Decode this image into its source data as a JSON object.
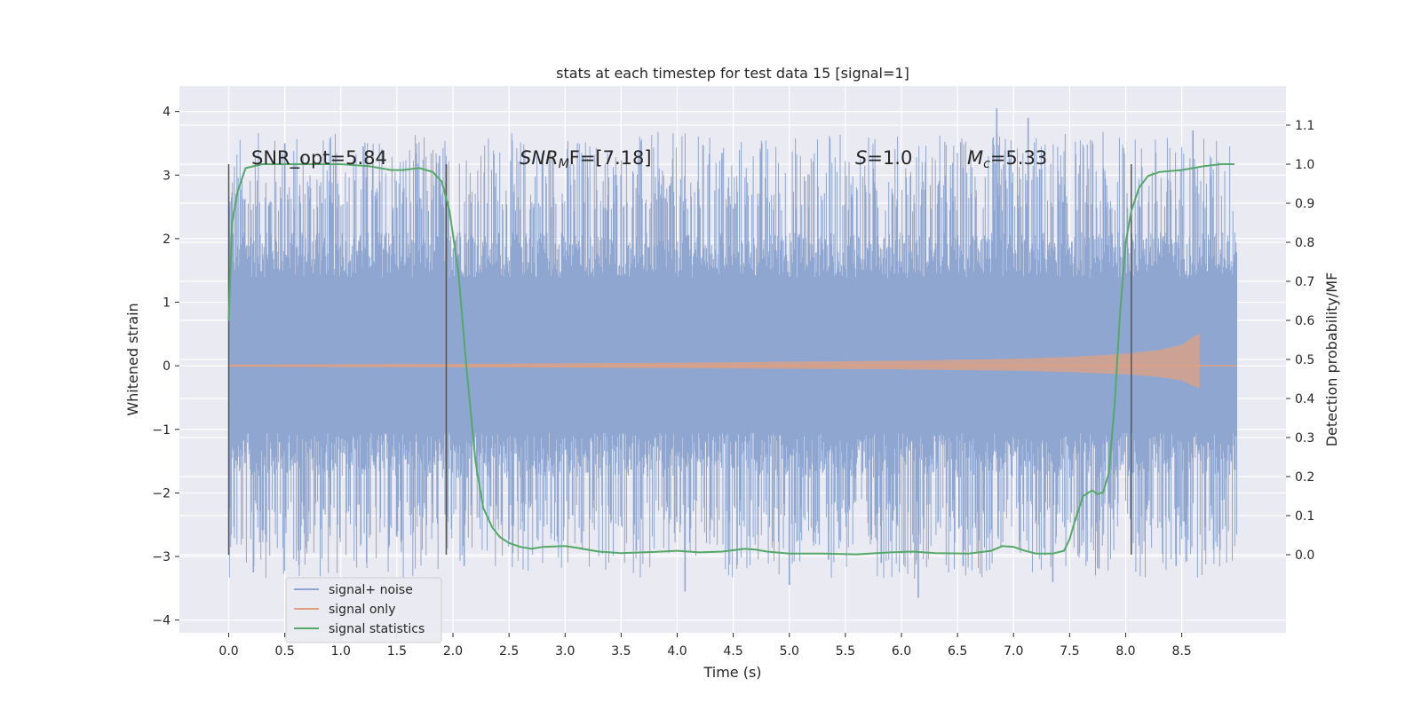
{
  "chart_data": {
    "type": "line",
    "title": "stats at each timestep for test data 15 [signal=1]",
    "xlabel": "Time (s)",
    "ylabel_left": "Whitened strain",
    "ylabel_right": "Detection probability/MF",
    "xlim": [
      -0.44,
      9.43
    ],
    "ylim_left": [
      -4.2,
      4.4
    ],
    "ylim_right": [
      -0.2,
      1.2
    ],
    "x_ticks": [
      "0.0",
      "0.5",
      "1.0",
      "1.5",
      "2.0",
      "2.5",
      "3.0",
      "3.5",
      "4.0",
      "4.5",
      "5.0",
      "5.5",
      "6.0",
      "6.5",
      "7.0",
      "7.5",
      "8.0",
      "8.5"
    ],
    "x_tick_values": [
      0,
      0.5,
      1,
      1.5,
      2,
      2.5,
      3,
      3.5,
      4,
      4.5,
      5,
      5.5,
      6,
      6.5,
      7,
      7.5,
      8,
      8.5
    ],
    "y_left_ticks": [
      "4",
      "3",
      "2",
      "1",
      "0",
      "−1",
      "−2",
      "−3",
      "−4"
    ],
    "y_left_tick_values": [
      4,
      3,
      2,
      1,
      0,
      -1,
      -2,
      -3,
      -4
    ],
    "y_right_ticks": [
      "1.1",
      "1.0",
      "0.9",
      "0.8",
      "0.7",
      "0.6",
      "0.5",
      "0.4",
      "0.3",
      "0.2",
      "0.1",
      "0.0"
    ],
    "y_right_tick_values": [
      1.1,
      1.0,
      0.9,
      0.8,
      0.7,
      0.6,
      0.5,
      0.4,
      0.3,
      0.2,
      0.1,
      0.0
    ],
    "grid": true,
    "legend_position": "bottom-left",
    "legend": [
      {
        "label": "signal+ noise",
        "color": "#8fa6d1"
      },
      {
        "label": "signal only",
        "color": "#e0a080"
      },
      {
        "label": "signal statistics",
        "color": "#55a868"
      }
    ],
    "annotations": {
      "snr_opt": "SNR_opt=5.84",
      "snr_mf_name": "SNR",
      "snr_mf_sub": "M",
      "snr_mf_tail": "F=[7.18]",
      "s_name": "S",
      "s_value": "=1.0",
      "mc_name": "M",
      "mc_sub": "c",
      "mc_value": "=5.33"
    },
    "vertical_lines_x": [
      0.0,
      1.94,
      8.05
    ],
    "series": [
      {
        "name": "signal+ noise",
        "color": "#8fa6d1",
        "x_range": [
          0.0,
          8.99
        ],
        "core_band": [
          -1.05,
          1.38
        ],
        "peak_extremes": [
          {
            "x": 0.5,
            "y": 3.5
          },
          {
            "x": 1.2,
            "y": 3.45
          },
          {
            "x": 1.88,
            "y": 3.3
          },
          {
            "x": 2.8,
            "y": 3.3
          },
          {
            "x": 4.4,
            "y": 3.35
          },
          {
            "x": 6.85,
            "y": 4.05
          },
          {
            "x": 7.13,
            "y": 3.9
          },
          {
            "x": 8.6,
            "y": 3.7
          },
          {
            "x": 0.22,
            "y": -3.25
          },
          {
            "x": 1.23,
            "y": -3.1
          },
          {
            "x": 2.1,
            "y": -3.15
          },
          {
            "x": 4.07,
            "y": -3.55
          },
          {
            "x": 5.0,
            "y": -3.45
          },
          {
            "x": 5.35,
            "y": -3.05
          },
          {
            "x": 5.82,
            "y": -3.1
          },
          {
            "x": 6.15,
            "y": -3.65
          },
          {
            "x": 6.55,
            "y": -3.15
          },
          {
            "x": 7.35,
            "y": -3.4
          },
          {
            "x": 8.45,
            "y": -3.15
          }
        ]
      },
      {
        "name": "signal only",
        "color": "#e0a080",
        "envelope": [
          {
            "x": 0.0,
            "amp": 0.02
          },
          {
            "x": 2.0,
            "amp": 0.03
          },
          {
            "x": 4.0,
            "amp": 0.05
          },
          {
            "x": 6.0,
            "amp": 0.08
          },
          {
            "x": 7.0,
            "amp": 0.11
          },
          {
            "x": 7.5,
            "amp": 0.14
          },
          {
            "x": 8.0,
            "amp": 0.19
          },
          {
            "x": 8.3,
            "amp": 0.25
          },
          {
            "x": 8.5,
            "amp": 0.33
          },
          {
            "x": 8.6,
            "amp": 0.45
          },
          {
            "x": 8.66,
            "amp": 0.5
          }
        ]
      },
      {
        "name": "signal statistics",
        "axis": "right",
        "color": "#55a868",
        "x": [
          0.0,
          0.03,
          0.08,
          0.15,
          0.3,
          0.6,
          1.0,
          1.25,
          1.45,
          1.55,
          1.7,
          1.82,
          1.9,
          1.97,
          2.05,
          2.12,
          2.2,
          2.27,
          2.35,
          2.42,
          2.5,
          2.6,
          2.7,
          2.8,
          3.0,
          3.1,
          3.3,
          3.5,
          3.8,
          4.0,
          4.2,
          4.4,
          4.6,
          4.7,
          4.8,
          5.0,
          5.3,
          5.6,
          5.9,
          6.1,
          6.3,
          6.6,
          6.8,
          6.9,
          7.0,
          7.1,
          7.2,
          7.35,
          7.45,
          7.5,
          7.55,
          7.62,
          7.7,
          7.75,
          7.8,
          7.85,
          7.9,
          7.95,
          8.0,
          8.05,
          8.12,
          8.2,
          8.3,
          8.5,
          8.7,
          8.85,
          8.97
        ],
        "values": [
          0.6,
          0.85,
          0.93,
          0.99,
          1.0,
          1.0,
          1.0,
          0.995,
          0.985,
          0.985,
          0.99,
          0.98,
          0.955,
          0.88,
          0.72,
          0.48,
          0.24,
          0.12,
          0.07,
          0.045,
          0.03,
          0.02,
          0.015,
          0.02,
          0.022,
          0.018,
          0.008,
          0.004,
          0.007,
          0.01,
          0.006,
          0.008,
          0.015,
          0.013,
          0.008,
          0.003,
          0.003,
          0.001,
          0.006,
          0.008,
          0.004,
          0.003,
          0.01,
          0.022,
          0.02,
          0.01,
          0.003,
          0.003,
          0.01,
          0.04,
          0.09,
          0.15,
          0.165,
          0.155,
          0.16,
          0.21,
          0.38,
          0.62,
          0.8,
          0.88,
          0.94,
          0.97,
          0.98,
          0.985,
          0.995,
          1.0,
          1.0
        ]
      }
    ]
  }
}
